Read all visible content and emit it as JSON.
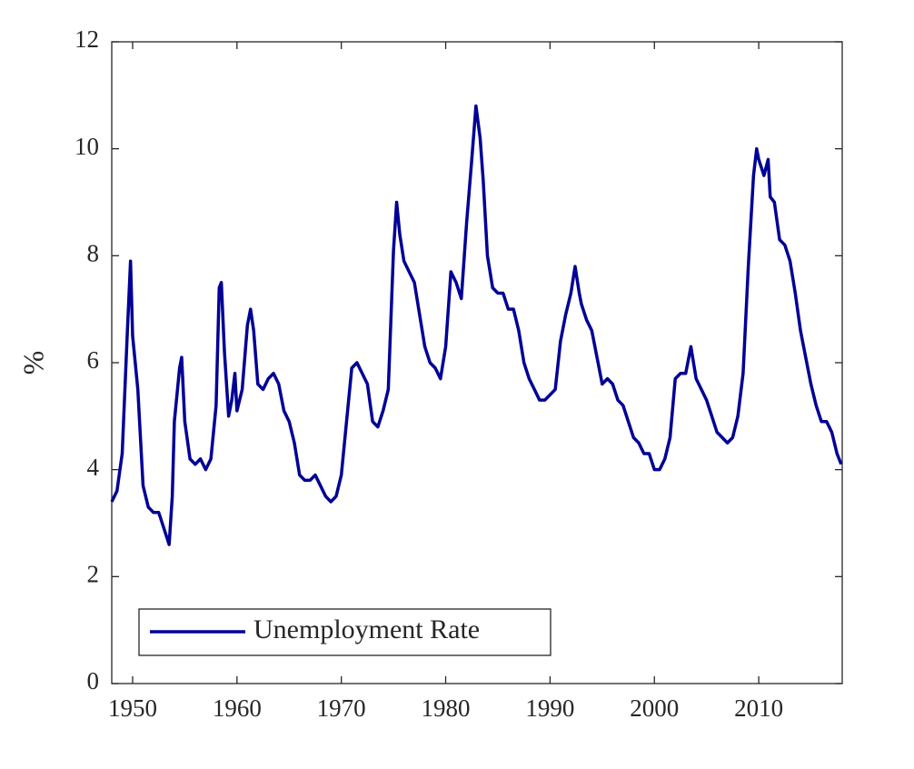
{
  "chart_data": {
    "type": "line",
    "ylabel": "%",
    "xlim": [
      1948,
      2018
    ],
    "xticks": [
      1950,
      1960,
      1970,
      1980,
      1990,
      2000,
      2010
    ],
    "ylim": [
      0,
      12
    ],
    "yticks": [
      0,
      2,
      4,
      6,
      8,
      10,
      12
    ],
    "legend": "lower left",
    "x": [
      1948.0,
      1948.5,
      1949.0,
      1949.5,
      1949.8,
      1950.0,
      1950.5,
      1951.0,
      1951.5,
      1952.0,
      1952.5,
      1953.0,
      1953.5,
      1953.8,
      1954.0,
      1954.5,
      1954.7,
      1955.0,
      1955.5,
      1956.0,
      1956.5,
      1957.0,
      1957.5,
      1958.0,
      1958.3,
      1958.5,
      1958.8,
      1959.2,
      1959.5,
      1959.8,
      1960.0,
      1960.5,
      1961.0,
      1961.3,
      1961.6,
      1962.0,
      1962.5,
      1963.0,
      1963.5,
      1964.0,
      1964.5,
      1965.0,
      1965.5,
      1966.0,
      1966.5,
      1967.0,
      1967.5,
      1968.0,
      1968.5,
      1969.0,
      1969.5,
      1970.0,
      1970.5,
      1971.0,
      1971.5,
      1972.0,
      1972.5,
      1973.0,
      1973.5,
      1974.0,
      1974.5,
      1975.0,
      1975.3,
      1975.6,
      1976.0,
      1976.5,
      1977.0,
      1977.5,
      1978.0,
      1978.5,
      1979.0,
      1979.5,
      1980.0,
      1980.5,
      1981.0,
      1981.5,
      1982.0,
      1982.5,
      1982.9,
      1983.3,
      1983.6,
      1984.0,
      1984.5,
      1985.0,
      1985.5,
      1986.0,
      1986.5,
      1987.0,
      1987.5,
      1988.0,
      1988.5,
      1989.0,
      1989.5,
      1990.0,
      1990.5,
      1991.0,
      1991.5,
      1992.0,
      1992.4,
      1992.8,
      1993.0,
      1993.5,
      1994.0,
      1994.5,
      1995.0,
      1995.5,
      1996.0,
      1996.5,
      1997.0,
      1997.5,
      1998.0,
      1998.5,
      1999.0,
      1999.5,
      2000.0,
      2000.5,
      2001.0,
      2001.5,
      2002.0,
      2002.5,
      2003.0,
      2003.5,
      2004.0,
      2004.5,
      2005.0,
      2005.5,
      2006.0,
      2006.5,
      2007.0,
      2007.5,
      2008.0,
      2008.5,
      2009.0,
      2009.5,
      2009.8,
      2010.0,
      2010.5,
      2010.9,
      2011.1,
      2011.5,
      2012.0,
      2012.5,
      2013.0,
      2013.5,
      2014.0,
      2014.5,
      2015.0,
      2015.5,
      2016.0,
      2016.5,
      2017.0,
      2017.5,
      2017.9
    ],
    "series": [
      {
        "name": "Unemployment Rate",
        "color": "#000096",
        "values": [
          3.4,
          3.6,
          4.3,
          6.6,
          7.9,
          6.5,
          5.5,
          3.7,
          3.3,
          3.2,
          3.2,
          2.9,
          2.6,
          3.5,
          4.9,
          5.9,
          6.1,
          4.9,
          4.2,
          4.1,
          4.2,
          4.0,
          4.2,
          5.2,
          7.4,
          7.5,
          6.2,
          5.0,
          5.3,
          5.8,
          5.1,
          5.5,
          6.7,
          7.0,
          6.6,
          5.6,
          5.5,
          5.7,
          5.8,
          5.6,
          5.1,
          4.9,
          4.5,
          3.9,
          3.8,
          3.8,
          3.9,
          3.7,
          3.5,
          3.4,
          3.5,
          3.9,
          4.9,
          5.9,
          6.0,
          5.8,
          5.6,
          4.9,
          4.8,
          5.1,
          5.5,
          8.1,
          9.0,
          8.4,
          7.9,
          7.7,
          7.5,
          6.9,
          6.3,
          6.0,
          5.9,
          5.7,
          6.3,
          7.7,
          7.5,
          7.2,
          8.6,
          9.8,
          10.8,
          10.2,
          9.4,
          8.0,
          7.4,
          7.3,
          7.3,
          7.0,
          7.0,
          6.6,
          6.0,
          5.7,
          5.5,
          5.3,
          5.3,
          5.4,
          5.5,
          6.4,
          6.9,
          7.3,
          7.8,
          7.3,
          7.1,
          6.8,
          6.6,
          6.1,
          5.6,
          5.7,
          5.6,
          5.3,
          5.2,
          4.9,
          4.6,
          4.5,
          4.3,
          4.3,
          4.0,
          4.0,
          4.2,
          4.6,
          5.7,
          5.8,
          5.8,
          6.3,
          5.7,
          5.5,
          5.3,
          5.0,
          4.7,
          4.6,
          4.5,
          4.6,
          5.0,
          5.8,
          7.8,
          9.5,
          10.0,
          9.8,
          9.5,
          9.8,
          9.1,
          9.0,
          8.3,
          8.2,
          7.9,
          7.3,
          6.6,
          6.1,
          5.6,
          5.2,
          4.9,
          4.9,
          4.7,
          4.3,
          4.1
        ]
      }
    ]
  }
}
